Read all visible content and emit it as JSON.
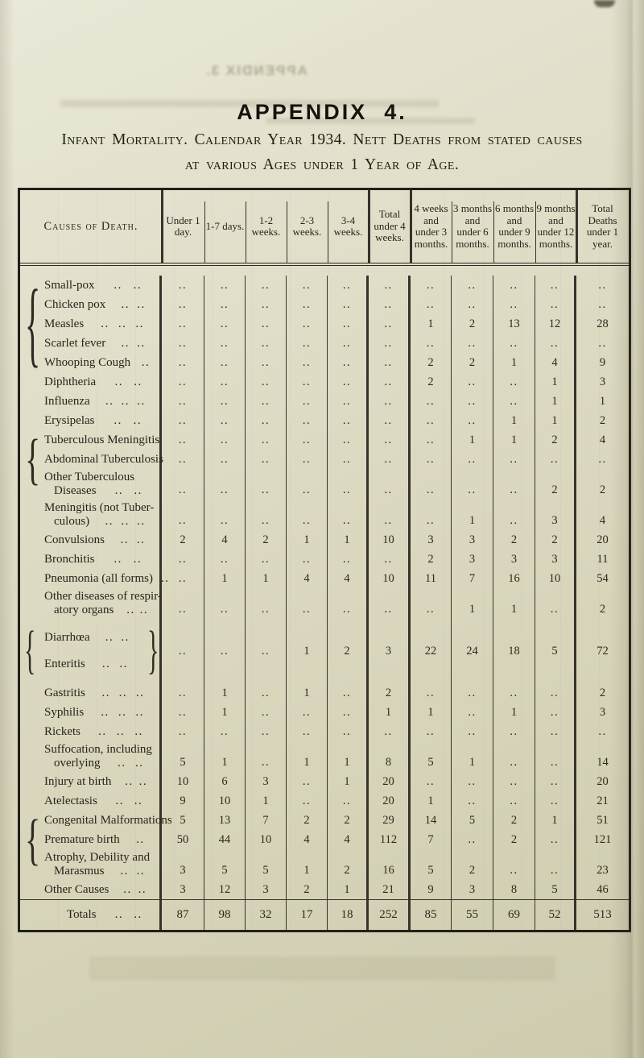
{
  "page": {
    "title": "APPENDIX  4.",
    "subtitle_line1": "Infant Mortality.  Calendar Year 1934.  Nett Deaths from stated causes",
    "subtitle_line2": "at various Ages under 1 Year of Age.",
    "show_through_title": "APPENDIX 3."
  },
  "table": {
    "columns": [
      "Causes of Death.",
      "Under 1 day.",
      "1-7 days.",
      "1-2 weeks.",
      "2-3 weeks.",
      "3-4 weeks.",
      "Total under 4 weeks.",
      "4 weeks and under 3 months.",
      "3 months and under 6 months.",
      "6 months and under 9 months.",
      "9 months and under 12 months.",
      "Total Deaths under 1 year."
    ],
    "empty_cell": "..",
    "rows": [
      {
        "cause": "Small-pox",
        "leader": ".. ..",
        "values": [
          "..",
          "..",
          "..",
          "..",
          "..",
          "..",
          "..",
          "..",
          "..",
          "..",
          ".."
        ]
      },
      {
        "cause": "Chicken pox",
        "leader": ".. ..",
        "values": [
          "..",
          "..",
          "..",
          "..",
          "..",
          "..",
          "..",
          "..",
          "..",
          "..",
          ".."
        ]
      },
      {
        "cause": "Measles",
        "leader": ".. .. ..",
        "values": [
          "..",
          "..",
          "..",
          "..",
          "..",
          "..",
          "1",
          "2",
          "13",
          "12",
          "28"
        ]
      },
      {
        "cause": "Scarlet fever",
        "leader": ".. ..",
        "values": [
          "..",
          "..",
          "..",
          "..",
          "..",
          "..",
          "..",
          "..",
          "..",
          "..",
          ".."
        ]
      },
      {
        "cause": "Whooping Cough",
        "leader": "..",
        "values": [
          "..",
          "..",
          "..",
          "..",
          "..",
          "..",
          "2",
          "2",
          "1",
          "4",
          "9"
        ]
      },
      {
        "cause": "Diphtheria",
        "leader": ".. ..",
        "values": [
          "..",
          "..",
          "..",
          "..",
          "..",
          "..",
          "2",
          "..",
          "..",
          "1",
          "3"
        ]
      },
      {
        "cause": "Influenza",
        "leader": ".. .. ..",
        "values": [
          "..",
          "..",
          "..",
          "..",
          "..",
          "..",
          "..",
          "..",
          "..",
          "1",
          "1"
        ]
      },
      {
        "cause": "Erysipelas",
        "leader": ".. ..",
        "values": [
          "..",
          "..",
          "..",
          "..",
          "..",
          "..",
          "..",
          "..",
          "1",
          "1",
          "2"
        ]
      },
      {
        "cause": "Tuberculous Meningitis",
        "leader": "",
        "values": [
          "..",
          "..",
          "..",
          "..",
          "..",
          "..",
          "..",
          "1",
          "1",
          "2",
          "4"
        ]
      },
      {
        "cause": "Abdominal Tuberculosis",
        "leader": "",
        "values": [
          "..",
          "..",
          "..",
          "..",
          "..",
          "..",
          "..",
          "..",
          "..",
          "..",
          ".."
        ]
      },
      {
        "cause": "Other Tuberculous",
        "cause2": "Diseases",
        "leader": ".. ..",
        "values": [
          "..",
          "..",
          "..",
          "..",
          "..",
          "..",
          "..",
          "..",
          "..",
          "2",
          "2"
        ]
      },
      {
        "cause": "Meningitis (not Tuber-",
        "cause2": "culous)",
        "leader": ".. .. ..",
        "values": [
          "..",
          "..",
          "..",
          "..",
          "..",
          "..",
          "..",
          "1",
          "..",
          "3",
          "4"
        ]
      },
      {
        "cause": "Convulsions",
        "leader": ".. ..",
        "values": [
          "2",
          "4",
          "2",
          "1",
          "1",
          "10",
          "3",
          "3",
          "2",
          "2",
          "20"
        ]
      },
      {
        "cause": "Bronchitis",
        "leader": ".. ..",
        "values": [
          "..",
          "..",
          "..",
          "..",
          "..",
          "..",
          "2",
          "3",
          "3",
          "3",
          "11"
        ]
      },
      {
        "cause": "Pneumonia (all forms)",
        "leader": "..",
        "values": [
          "..",
          "1",
          "1",
          "4",
          "4",
          "10",
          "11",
          "7",
          "16",
          "10",
          "54"
        ]
      },
      {
        "cause": "Other diseases of respir-",
        "cause2": "atory organs",
        "leader": ".. ..",
        "values": [
          "..",
          "..",
          "..",
          "..",
          "..",
          "..",
          "..",
          "1",
          "1",
          "..",
          "2"
        ]
      },
      {
        "merged": true,
        "lines": [
          {
            "cause": "Diarrhœa",
            "leader": ".. .."
          },
          {
            "cause": "Enteritis",
            "leader": ".. .."
          }
        ],
        "values": [
          "..",
          "..",
          "..",
          "1",
          "2",
          "3",
          "22",
          "24",
          "18",
          "5",
          "72"
        ]
      },
      {
        "cause": "Gastritis",
        "leader": ".. .. ..",
        "values": [
          "..",
          "1",
          "..",
          "1",
          "..",
          "2",
          "..",
          "..",
          "..",
          "..",
          "2"
        ]
      },
      {
        "cause": "Syphilis",
        "leader": ".. .. ..",
        "values": [
          "..",
          "1",
          "..",
          "..",
          "..",
          "1",
          "1",
          "..",
          "1",
          "..",
          "3"
        ]
      },
      {
        "cause": "Rickets",
        "leader": ".. .. ..",
        "values": [
          "..",
          "..",
          "..",
          "..",
          "..",
          "..",
          "..",
          "..",
          "..",
          "..",
          ".."
        ]
      },
      {
        "cause": "Suffocation, including",
        "cause2": "overlying",
        "leader": ".. ..",
        "values": [
          "5",
          "1",
          "..",
          "1",
          "1",
          "8",
          "5",
          "1",
          "..",
          "..",
          "14"
        ]
      },
      {
        "cause": "Injury at birth",
        "leader": ".. ..",
        "values": [
          "10",
          "6",
          "3",
          "..",
          "1",
          "20",
          "..",
          "..",
          "..",
          "..",
          "20"
        ]
      },
      {
        "cause": "Atelectasis",
        "leader": ".. ..",
        "values": [
          "9",
          "10",
          "1",
          "..",
          "..",
          "20",
          "1",
          "..",
          "..",
          "..",
          "21"
        ]
      },
      {
        "cause": "Congenital Malformations",
        "leader": "",
        "values": [
          "5",
          "13",
          "7",
          "2",
          "2",
          "29",
          "14",
          "5",
          "2",
          "1",
          "51"
        ]
      },
      {
        "cause": "Premature birth",
        "leader": "..",
        "values": [
          "50",
          "44",
          "10",
          "4",
          "4",
          "112",
          "7",
          "..",
          "2",
          "..",
          "121"
        ]
      },
      {
        "cause": "Atrophy, Debility and",
        "cause2": "Marasmus",
        "leader": ".. ..",
        "values": [
          "3",
          "5",
          "5",
          "1",
          "2",
          "16",
          "5",
          "2",
          "..",
          "..",
          "23"
        ]
      },
      {
        "cause": "Other Causes",
        "leader": ".. ..",
        "values": [
          "3",
          "12",
          "3",
          "2",
          "1",
          "21",
          "9",
          "3",
          "8",
          "5",
          "46"
        ]
      }
    ],
    "groups": [
      {
        "from": 0,
        "to": 5
      },
      {
        "from": 8,
        "to": 10
      },
      {
        "from": 23,
        "to": 25
      }
    ],
    "totals": {
      "cause": "Totals",
      "leader": ".. ..",
      "values": [
        "87",
        "98",
        "32",
        "17",
        "18",
        "252",
        "85",
        "55",
        "69",
        "52",
        "513"
      ]
    }
  }
}
